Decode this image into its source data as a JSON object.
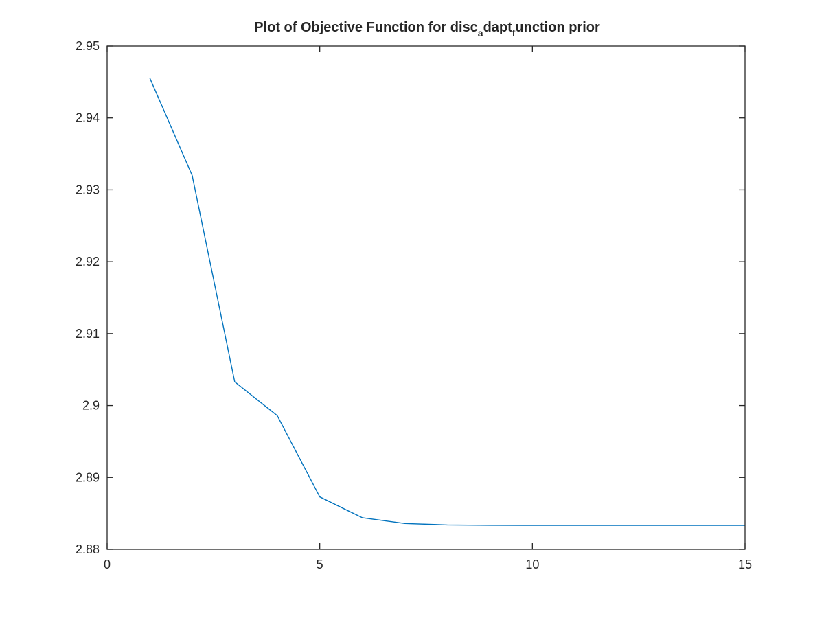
{
  "chart_data": {
    "type": "line",
    "title_parts": [
      {
        "text": "Plot of Objective Function for disc",
        "sub": false
      },
      {
        "text": "a",
        "sub": true
      },
      {
        "text": "dapt",
        "sub": false
      },
      {
        "text": "f",
        "sub": true
      },
      {
        "text": "unction prior",
        "sub": false
      }
    ],
    "xlabel": "",
    "ylabel": "",
    "xlim": [
      0,
      15
    ],
    "ylim": [
      2.88,
      2.95
    ],
    "xticks": [
      0,
      5,
      10,
      15
    ],
    "xtick_labels": [
      "0",
      "5",
      "10",
      "15"
    ],
    "yticks": [
      2.88,
      2.89,
      2.9,
      2.91,
      2.92,
      2.93,
      2.94,
      2.95
    ],
    "ytick_labels": [
      "2.88",
      "2.89",
      "2.9",
      "2.91",
      "2.92",
      "2.93",
      "2.94",
      "2.95"
    ],
    "grid": false,
    "series": [
      {
        "color": "#0072BD",
        "x": [
          1,
          2,
          3,
          4,
          5,
          6,
          7,
          8,
          9,
          10,
          11,
          12,
          13,
          14,
          15
        ],
        "y": [
          2.9456,
          2.932,
          2.9033,
          2.8986,
          2.8873,
          2.8844,
          2.8836,
          2.8834,
          2.88335,
          2.88334,
          2.88334,
          2.88334,
          2.88334,
          2.88334,
          2.88334
        ]
      }
    ]
  }
}
